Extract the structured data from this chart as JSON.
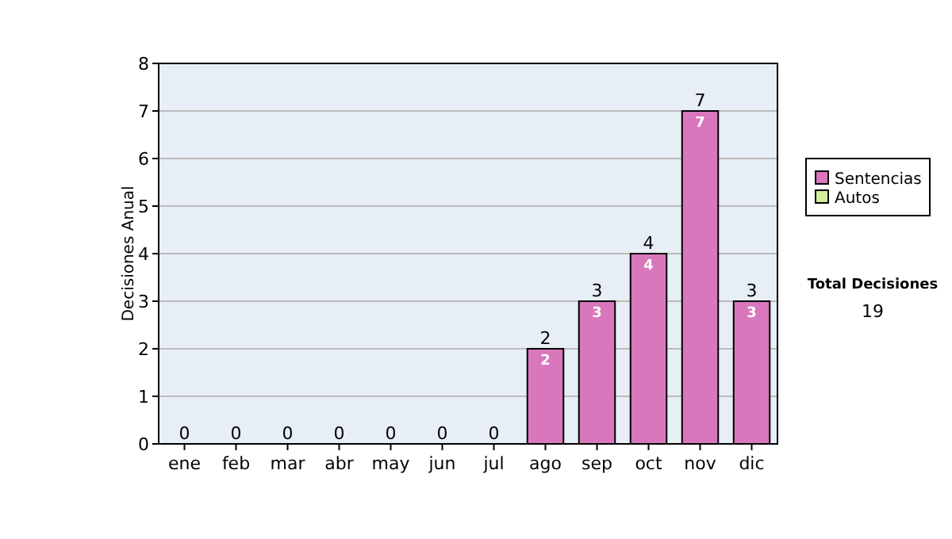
{
  "chart_data": {
    "type": "bar",
    "stacked": true,
    "ylabel": "Decisiones Anual",
    "categories": [
      "ene",
      "feb",
      "mar",
      "abr",
      "may",
      "jun",
      "jul",
      "ago",
      "sep",
      "oct",
      "nov",
      "dic"
    ],
    "series": [
      {
        "name": "Sentencias",
        "color": "#d977bd",
        "values": [
          0,
          0,
          0,
          0,
          0,
          0,
          0,
          2,
          3,
          4,
          7,
          3
        ],
        "value_labels": [
          null,
          null,
          null,
          null,
          null,
          null,
          null,
          "2",
          "3",
          "4",
          "7",
          "3"
        ]
      },
      {
        "name": "Autos",
        "color": "#d4ec9c",
        "values": [
          0,
          0,
          0,
          0,
          0,
          0,
          0,
          0,
          0,
          0,
          0,
          0
        ]
      }
    ],
    "totals": [
      "0",
      "0",
      "0",
      "0",
      "0",
      "0",
      "0",
      "2",
      "3",
      "4",
      "7",
      "3"
    ],
    "ylim": [
      0,
      8
    ],
    "yticks": [
      0,
      1,
      2,
      3,
      4,
      5,
      6,
      7,
      8
    ],
    "grid": "y",
    "legend": "right",
    "annotations": [
      "Total Decisiones",
      "19"
    ]
  }
}
